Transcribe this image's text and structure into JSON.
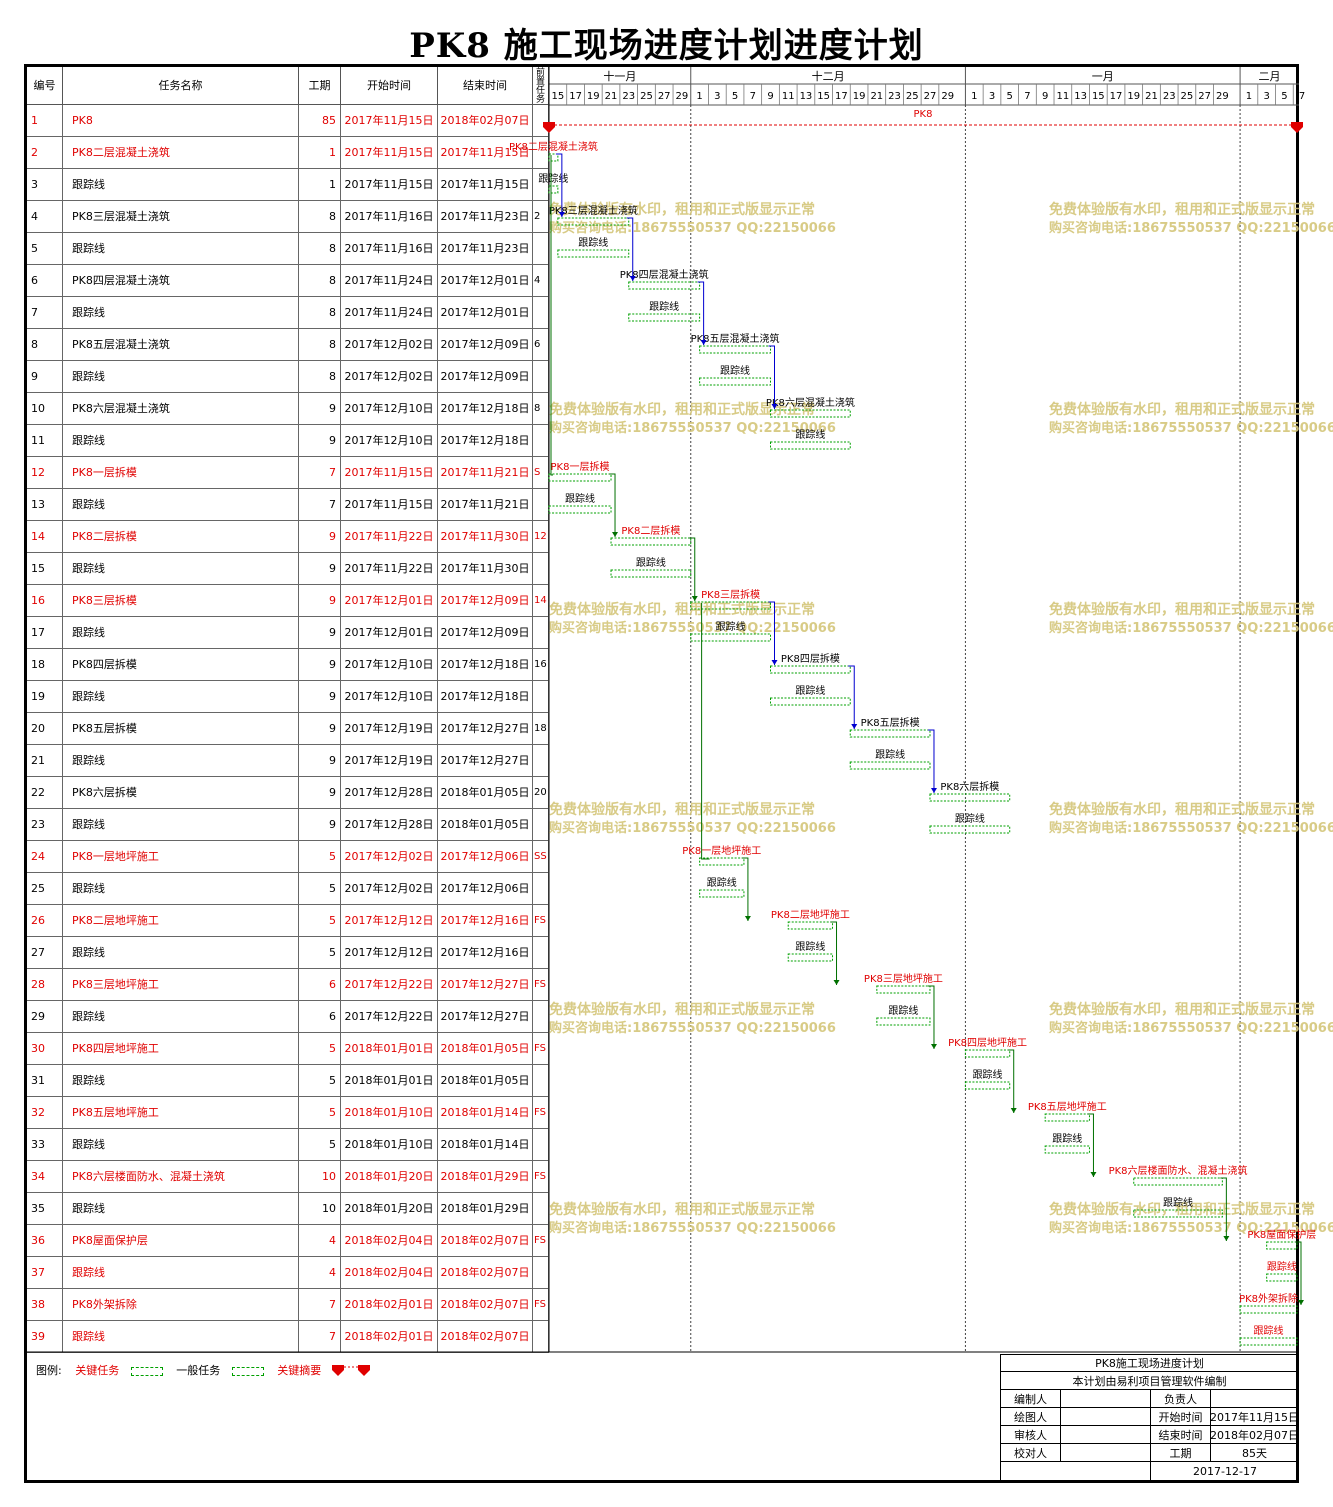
{
  "title": "PK8  施工现场进度计划进度计划",
  "table": {
    "headers": [
      "编号",
      "任务名称",
      "工期",
      "开始时间",
      "结束时间",
      "前置任务"
    ]
  },
  "timeline": {
    "months": [
      {
        "name": "十一月",
        "days": [
          "15",
          "17",
          "19",
          "21",
          "23",
          "25",
          "27",
          "29"
        ]
      },
      {
        "name": "十二月",
        "days": [
          "1",
          "3",
          "5",
          "7",
          "9",
          "11",
          "13",
          "15",
          "17",
          "19",
          "21",
          "23",
          "25",
          "27",
          "29"
        ]
      },
      {
        "name": "一月",
        "days": [
          "1",
          "3",
          "5",
          "7",
          "9",
          "11",
          "13",
          "15",
          "17",
          "19",
          "21",
          "23",
          "25",
          "27",
          "29"
        ]
      },
      {
        "name": "二月",
        "days": [
          "1",
          "3",
          "5",
          "7"
        ]
      }
    ]
  },
  "watermark": {
    "line1": "免费体验版有水印，租用和正式版显示正常",
    "line2": "购买咨询电话:18675550537 QQ:22150066"
  },
  "legend": {
    "label": "图例:",
    "critical": "关键任务",
    "normal": "一般任务",
    "summary": "关键摘要"
  },
  "colors": {
    "critical": "#e00000",
    "normal": "#000000",
    "bar": "#00a000",
    "link_blue": "#0000d0",
    "link_green": "#007000",
    "watermark": "#d4c67a"
  },
  "title_block": {
    "project": "PK8施工现场进度计划",
    "software": "本计划由易利项目管理软件编制",
    "editor_label": "编制人",
    "owner_label": "负责人",
    "drawer_label": "绘图人",
    "start_label": "开始时间",
    "start_value": "2017年11月15日",
    "reviewer_label": "审核人",
    "end_label": "结束时间",
    "end_value": "2018年02月07日",
    "checker_label": "校对人",
    "duration_label": "工期",
    "duration_value": "85天",
    "date": "2017-12-17"
  },
  "chart_data": {
    "type": "gantt",
    "x_range": [
      "2017-11-15",
      "2018-02-08"
    ],
    "tasks": [
      {
        "id": "1",
        "name": "PK8",
        "dur": "85",
        "start": "2017年11月15日",
        "end": "2018年02月07日",
        "pred": "",
        "critical": true,
        "summary": true
      },
      {
        "id": "2",
        "name": "PK8二层混凝土浇筑",
        "dur": "1",
        "start": "2017年11月15日",
        "end": "2017年11月15日",
        "pred": "",
        "critical": true
      },
      {
        "id": "3",
        "name": "跟踪线",
        "dur": "1",
        "start": "2017年11月15日",
        "end": "2017年11月15日",
        "pred": "",
        "critical": false
      },
      {
        "id": "4",
        "name": "PK8三层混凝土浇筑",
        "dur": "8",
        "start": "2017年11月16日",
        "end": "2017年11月23日",
        "pred": "2",
        "critical": false
      },
      {
        "id": "5",
        "name": "跟踪线",
        "dur": "8",
        "start": "2017年11月16日",
        "end": "2017年11月23日",
        "pred": "",
        "critical": false
      },
      {
        "id": "6",
        "name": "PK8四层混凝土浇筑",
        "dur": "8",
        "start": "2017年11月24日",
        "end": "2017年12月01日",
        "pred": "4",
        "critical": false
      },
      {
        "id": "7",
        "name": "跟踪线",
        "dur": "8",
        "start": "2017年11月24日",
        "end": "2017年12月01日",
        "pred": "",
        "critical": false
      },
      {
        "id": "8",
        "name": "PK8五层混凝土浇筑",
        "dur": "8",
        "start": "2017年12月02日",
        "end": "2017年12月09日",
        "pred": "6",
        "critical": false
      },
      {
        "id": "9",
        "name": "跟踪线",
        "dur": "8",
        "start": "2017年12月02日",
        "end": "2017年12月09日",
        "pred": "",
        "critical": false
      },
      {
        "id": "10",
        "name": "PK8六层混凝土浇筑",
        "dur": "9",
        "start": "2017年12月10日",
        "end": "2017年12月18日",
        "pred": "8",
        "critical": false
      },
      {
        "id": "11",
        "name": "跟踪线",
        "dur": "9",
        "start": "2017年12月10日",
        "end": "2017年12月18日",
        "pred": "",
        "critical": false
      },
      {
        "id": "12",
        "name": "PK8一层拆模",
        "dur": "7",
        "start": "2017年11月15日",
        "end": "2017年11月21日",
        "pred": "S",
        "critical": true
      },
      {
        "id": "13",
        "name": "跟踪线",
        "dur": "7",
        "start": "2017年11月15日",
        "end": "2017年11月21日",
        "pred": "",
        "critical": false
      },
      {
        "id": "14",
        "name": "PK8二层拆模",
        "dur": "9",
        "start": "2017年11月22日",
        "end": "2017年11月30日",
        "pred": "12",
        "critical": true
      },
      {
        "id": "15",
        "name": "跟踪线",
        "dur": "9",
        "start": "2017年11月22日",
        "end": "2017年11月30日",
        "pred": "",
        "critical": false
      },
      {
        "id": "16",
        "name": "PK8三层拆模",
        "dur": "9",
        "start": "2017年12月01日",
        "end": "2017年12月09日",
        "pred": "14",
        "critical": true
      },
      {
        "id": "17",
        "name": "跟踪线",
        "dur": "9",
        "start": "2017年12月01日",
        "end": "2017年12月09日",
        "pred": "",
        "critical": false
      },
      {
        "id": "18",
        "name": "PK8四层拆模",
        "dur": "9",
        "start": "2017年12月10日",
        "end": "2017年12月18日",
        "pred": "16",
        "critical": false
      },
      {
        "id": "19",
        "name": "跟踪线",
        "dur": "9",
        "start": "2017年12月10日",
        "end": "2017年12月18日",
        "pred": "",
        "critical": false
      },
      {
        "id": "20",
        "name": "PK8五层拆模",
        "dur": "9",
        "start": "2017年12月19日",
        "end": "2017年12月27日",
        "pred": "18",
        "critical": false
      },
      {
        "id": "21",
        "name": "跟踪线",
        "dur": "9",
        "start": "2017年12月19日",
        "end": "2017年12月27日",
        "pred": "",
        "critical": false
      },
      {
        "id": "22",
        "name": "PK8六层拆模",
        "dur": "9",
        "start": "2017年12月28日",
        "end": "2018年01月05日",
        "pred": "20",
        "critical": false
      },
      {
        "id": "23",
        "name": "跟踪线",
        "dur": "9",
        "start": "2017年12月28日",
        "end": "2018年01月05日",
        "pred": "",
        "critical": false
      },
      {
        "id": "24",
        "name": "PK8一层地坪施工",
        "dur": "5",
        "start": "2017年12月02日",
        "end": "2017年12月06日",
        "pred": "SS",
        "critical": true
      },
      {
        "id": "25",
        "name": "跟踪线",
        "dur": "5",
        "start": "2017年12月02日",
        "end": "2017年12月06日",
        "pred": "",
        "critical": false
      },
      {
        "id": "26",
        "name": "PK8二层地坪施工",
        "dur": "5",
        "start": "2017年12月12日",
        "end": "2017年12月16日",
        "pred": "FS",
        "critical": true
      },
      {
        "id": "27",
        "name": "跟踪线",
        "dur": "5",
        "start": "2017年12月12日",
        "end": "2017年12月16日",
        "pred": "",
        "critical": false
      },
      {
        "id": "28",
        "name": "PK8三层地坪施工",
        "dur": "6",
        "start": "2017年12月22日",
        "end": "2017年12月27日",
        "pred": "FS",
        "critical": true
      },
      {
        "id": "29",
        "name": "跟踪线",
        "dur": "6",
        "start": "2017年12月22日",
        "end": "2017年12月27日",
        "pred": "",
        "critical": false
      },
      {
        "id": "30",
        "name": "PK8四层地坪施工",
        "dur": "5",
        "start": "2018年01月01日",
        "end": "2018年01月05日",
        "pred": "FS",
        "critical": true
      },
      {
        "id": "31",
        "name": "跟踪线",
        "dur": "5",
        "start": "2018年01月01日",
        "end": "2018年01月05日",
        "pred": "",
        "critical": false
      },
      {
        "id": "32",
        "name": "PK8五层地坪施工",
        "dur": "5",
        "start": "2018年01月10日",
        "end": "2018年01月14日",
        "pred": "FS",
        "critical": true
      },
      {
        "id": "33",
        "name": "跟踪线",
        "dur": "5",
        "start": "2018年01月10日",
        "end": "2018年01月14日",
        "pred": "",
        "critical": false
      },
      {
        "id": "34",
        "name": "PK8六层楼面防水、混凝土浇筑",
        "dur": "10",
        "start": "2018年01月20日",
        "end": "2018年01月29日",
        "pred": "FS",
        "critical": true
      },
      {
        "id": "35",
        "name": "跟踪线",
        "dur": "10",
        "start": "2018年01月20日",
        "end": "2018年01月29日",
        "pred": "",
        "critical": false
      },
      {
        "id": "36",
        "name": "PK8屋面保护层",
        "dur": "4",
        "start": "2018年02月04日",
        "end": "2018年02月07日",
        "pred": "FS",
        "critical": true
      },
      {
        "id": "37",
        "name": "跟踪线",
        "dur": "4",
        "start": "2018年02月04日",
        "end": "2018年02月07日",
        "pred": "",
        "critical": true
      },
      {
        "id": "38",
        "name": "PK8外架拆除",
        "dur": "7",
        "start": "2018年02月01日",
        "end": "2018年02月07日",
        "pred": "FS",
        "critical": true
      },
      {
        "id": "39",
        "name": "跟踪线",
        "dur": "7",
        "start": "2018年02月01日",
        "end": "2018年02月07日",
        "pred": "",
        "critical": true
      }
    ]
  }
}
